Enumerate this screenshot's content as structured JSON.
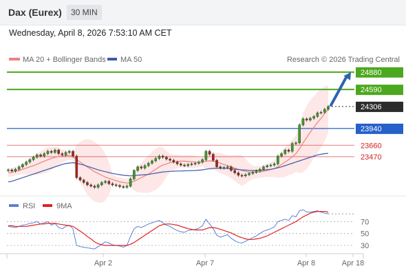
{
  "header": {
    "instrument": "Dax (Eurex)",
    "timeframe": "30 MIN"
  },
  "datetime": "Wednesday, April 8, 2026 7:53:10 AM CET",
  "legend": {
    "ma20": "MA 20 + Bollinger Bands",
    "ma50": "MA 50",
    "credit": "Research © 2026 Trading Central",
    "rsi": "RSI",
    "rsi_ma": "9MA"
  },
  "colors": {
    "resistance": "#4ca81e",
    "current": "#2c2c2c",
    "support_blue": "#2660c9",
    "support_red": "#d32121",
    "ma20": "#f08080",
    "ma50": "#3a5ba8",
    "bollinger_fill": "#fde3e3",
    "arrow": "#2e63ad",
    "rsi": "#5b7fd8",
    "rsi_ma": "#e02020"
  },
  "levels": [
    {
      "value": 24880,
      "label": "24880",
      "kind": "resistance"
    },
    {
      "value": 24590,
      "label": "24590",
      "kind": "resistance"
    },
    {
      "value": 24306,
      "label": "24306",
      "kind": "current"
    },
    {
      "value": 23940,
      "label": "23940",
      "kind": "support_blue"
    },
    {
      "value": 23660,
      "label": "23660",
      "kind": "support_red"
    },
    {
      "value": 23470,
      "label": "23470",
      "kind": "support_red"
    }
  ],
  "rsi_levels": [
    "70",
    "50",
    "30"
  ],
  "x_ticks": [
    "Apr 2",
    "Apr 7",
    "Apr 8",
    "Apr 18"
  ],
  "chart_data": {
    "type": "line",
    "description_units": "price",
    "price_ylim": [
      22850,
      25050
    ],
    "rsi_ylim": [
      15,
      90
    ],
    "close": [
      23250,
      23230,
      23260,
      23300,
      23340,
      23380,
      23420,
      23460,
      23500,
      23480,
      23520,
      23560,
      23540,
      23580,
      23520,
      23500,
      23540,
      23560,
      23480,
      23120,
      23080,
      23040,
      23000,
      22980,
      22960,
      23000,
      23040,
      23060,
      23020,
      23000,
      22990,
      22970,
      22960,
      22980,
      23100,
      23240,
      23300,
      23280,
      23320,
      23360,
      23400,
      23440,
      23480,
      23460,
      23430,
      23410,
      23380,
      23350,
      23330,
      23320,
      23340,
      23350,
      23360,
      23380,
      23420,
      23560,
      23510,
      23410,
      23300,
      23280,
      23290,
      23300,
      23240,
      23200,
      23160,
      23150,
      23170,
      23190,
      23210,
      23230,
      23260,
      23300,
      23320,
      23330,
      23350,
      23480,
      23520,
      23580,
      23560,
      23690,
      23700,
      24000,
      24100,
      24080,
      24110,
      24140,
      24200,
      24210,
      24260,
      24306
    ],
    "ma20": [
      23200,
      23210,
      23225,
      23240,
      23260,
      23280,
      23300,
      23320,
      23345,
      23370,
      23395,
      23420,
      23440,
      23460,
      23475,
      23480,
      23485,
      23490,
      23470,
      23420,
      23380,
      23340,
      23300,
      23260,
      23220,
      23190,
      23160,
      23130,
      23110,
      23090,
      23070,
      23050,
      23040,
      23030,
      23040,
      23060,
      23090,
      23120,
      23150,
      23180,
      23220,
      23260,
      23300,
      23330,
      23350,
      23370,
      23380,
      23390,
      23395,
      23395,
      23390,
      23385,
      23380,
      23375,
      23380,
      23395,
      23400,
      23395,
      23380,
      23360,
      23340,
      23320,
      23300,
      23280,
      23260,
      23240,
      23225,
      23215,
      23210,
      23210,
      23215,
      23225,
      23240,
      23255,
      23270,
      23300,
      23340,
      23380,
      23420,
      23470,
      23520,
      23600,
      23700,
      23790,
      23880,
      23960,
      24040,
      24110,
      24190,
      24260
    ],
    "ma50": [
      23050,
      23060,
      23080,
      23100,
      23120,
      23140,
      23160,
      23180,
      23200,
      23220,
      23240,
      23260,
      23280,
      23300,
      23320,
      23340,
      23355,
      23365,
      23370,
      23360,
      23345,
      23330,
      23310,
      23290,
      23270,
      23250,
      23235,
      23220,
      23205,
      23190,
      23180,
      23170,
      23160,
      23155,
      23150,
      23155,
      23160,
      23165,
      23170,
      23175,
      23185,
      23195,
      23205,
      23215,
      23220,
      23225,
      23228,
      23230,
      23232,
      23234,
      23236,
      23238,
      23240,
      23245,
      23250,
      23260,
      23270,
      23275,
      23278,
      23278,
      23276,
      23272,
      23268,
      23262,
      23256,
      23250,
      23246,
      23242,
      23240,
      23240,
      23242,
      23246,
      23252,
      23260,
      23270,
      23285,
      23300,
      23320,
      23340,
      23360,
      23380,
      23400,
      23420,
      23440,
      23460,
      23480,
      23500,
      23510,
      23520,
      23525
    ],
    "rsi": [
      62,
      61,
      60,
      62,
      64,
      65,
      67,
      68,
      70,
      66,
      68,
      70,
      64,
      67,
      60,
      58,
      62,
      64,
      58,
      30,
      28,
      27,
      26,
      25,
      24,
      28,
      32,
      36,
      34,
      31,
      30,
      29,
      27,
      30,
      45,
      58,
      62,
      60,
      63,
      66,
      68,
      70,
      72,
      68,
      64,
      62,
      58,
      55,
      53,
      52,
      55,
      56,
      57,
      59,
      63,
      74,
      66,
      58,
      47,
      44,
      46,
      48,
      42,
      38,
      35,
      34,
      37,
      40,
      43,
      46,
      50,
      54,
      56,
      58,
      61,
      70,
      72,
      74,
      72,
      80,
      78,
      88,
      90,
      86,
      86,
      87,
      88,
      86,
      84,
      83
    ],
    "rsi_ma": [
      63,
      63,
      62,
      62,
      62,
      62,
      63,
      64,
      65,
      66,
      66,
      67,
      67,
      67,
      66,
      65,
      64,
      63,
      62,
      58,
      54,
      50,
      45,
      41,
      36,
      33,
      31,
      30,
      30,
      30,
      30,
      30,
      30,
      30,
      32,
      35,
      39,
      43,
      47,
      51,
      55,
      59,
      63,
      65,
      66,
      66,
      65,
      64,
      62,
      60,
      58,
      57,
      56,
      56,
      56,
      58,
      60,
      60,
      59,
      57,
      55,
      53,
      51,
      48,
      45,
      43,
      41,
      40,
      40,
      41,
      42,
      44,
      46,
      49,
      52,
      55,
      58,
      61,
      64,
      67,
      70,
      74,
      78,
      81,
      84,
      86,
      87,
      87,
      87,
      86
    ]
  }
}
